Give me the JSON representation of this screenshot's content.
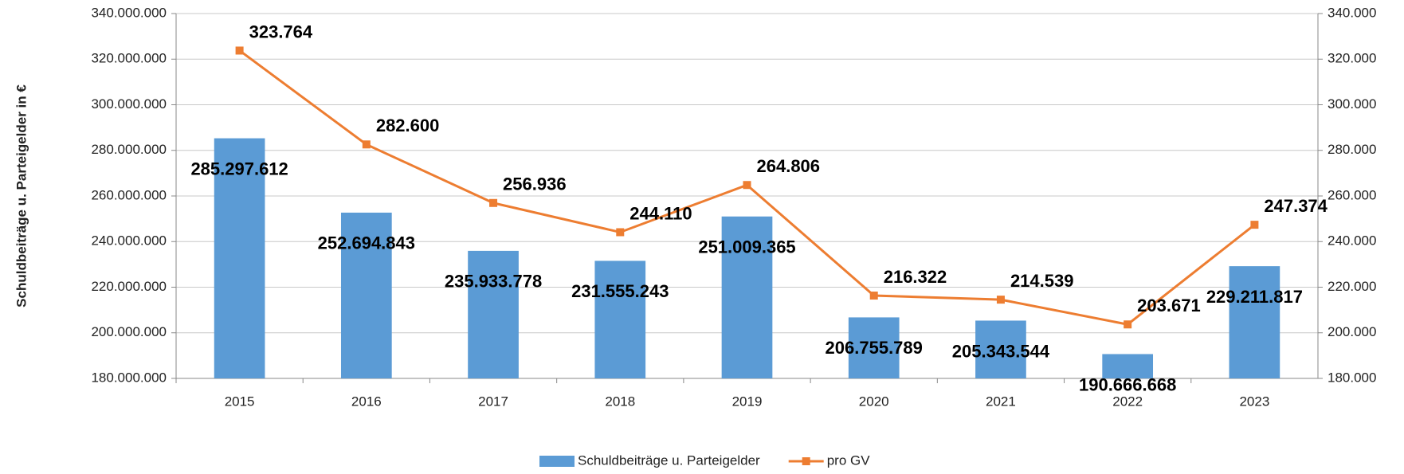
{
  "chart_data": {
    "type": "bar",
    "y_axis_label": "Schuldbeiträge u. Parteigelder in €",
    "categories": [
      "2015",
      "2016",
      "2017",
      "2018",
      "2019",
      "2020",
      "2021",
      "2022",
      "2023"
    ],
    "series": [
      {
        "name": "Schuldbeiträge u. Parteigelder",
        "type": "bar",
        "color": "#5b9bd5",
        "values": [
          285297612,
          252694843,
          235933778,
          231555243,
          251009365,
          206755789,
          205343544,
          190666668,
          229211817
        ],
        "value_labels": [
          "285.297.612",
          "252.694.843",
          "235.933.778",
          "231.555.243",
          "251.009.365",
          "206.755.789",
          "205.343.544",
          "190.666.668",
          "229.211.817"
        ]
      },
      {
        "name": "pro GV",
        "type": "line",
        "axis": "y2",
        "color": "#ed7d31",
        "values": [
          323764,
          282600,
          256936,
          244110,
          264806,
          216322,
          214539,
          203671,
          247374
        ],
        "value_labels": [
          "323.764",
          "282.600",
          "256.936",
          "244.110",
          "264.806",
          "216.322",
          "214.539",
          "203.671",
          "247.374"
        ]
      }
    ],
    "ylim": [
      180000000,
      340000000
    ],
    "yticks": [
      {
        "value": 180000000,
        "label": "180.000.000"
      },
      {
        "value": 200000000,
        "label": "200.000.000"
      },
      {
        "value": 220000000,
        "label": "220.000.000"
      },
      {
        "value": 240000000,
        "label": "240.000.000"
      },
      {
        "value": 260000000,
        "label": "260.000.000"
      },
      {
        "value": 280000000,
        "label": "280.000.000"
      },
      {
        "value": 300000000,
        "label": "300.000.000"
      },
      {
        "value": 320000000,
        "label": "320.000.000"
      },
      {
        "value": 340000000,
        "label": "340.000.000"
      }
    ],
    "y2lim": [
      180000,
      340000
    ],
    "y2ticks": [
      {
        "value": 180000,
        "label": "180.000"
      },
      {
        "value": 200000,
        "label": "200.000"
      },
      {
        "value": 220000,
        "label": "220.000"
      },
      {
        "value": 240000,
        "label": "240.000"
      },
      {
        "value": 260000,
        "label": "260.000"
      },
      {
        "value": 280000,
        "label": "280.000"
      },
      {
        "value": 300000,
        "label": "300.000"
      },
      {
        "value": 320000,
        "label": "320.000"
      },
      {
        "value": 340000,
        "label": "340.000"
      }
    ],
    "grid": true,
    "legend": "bottom"
  }
}
